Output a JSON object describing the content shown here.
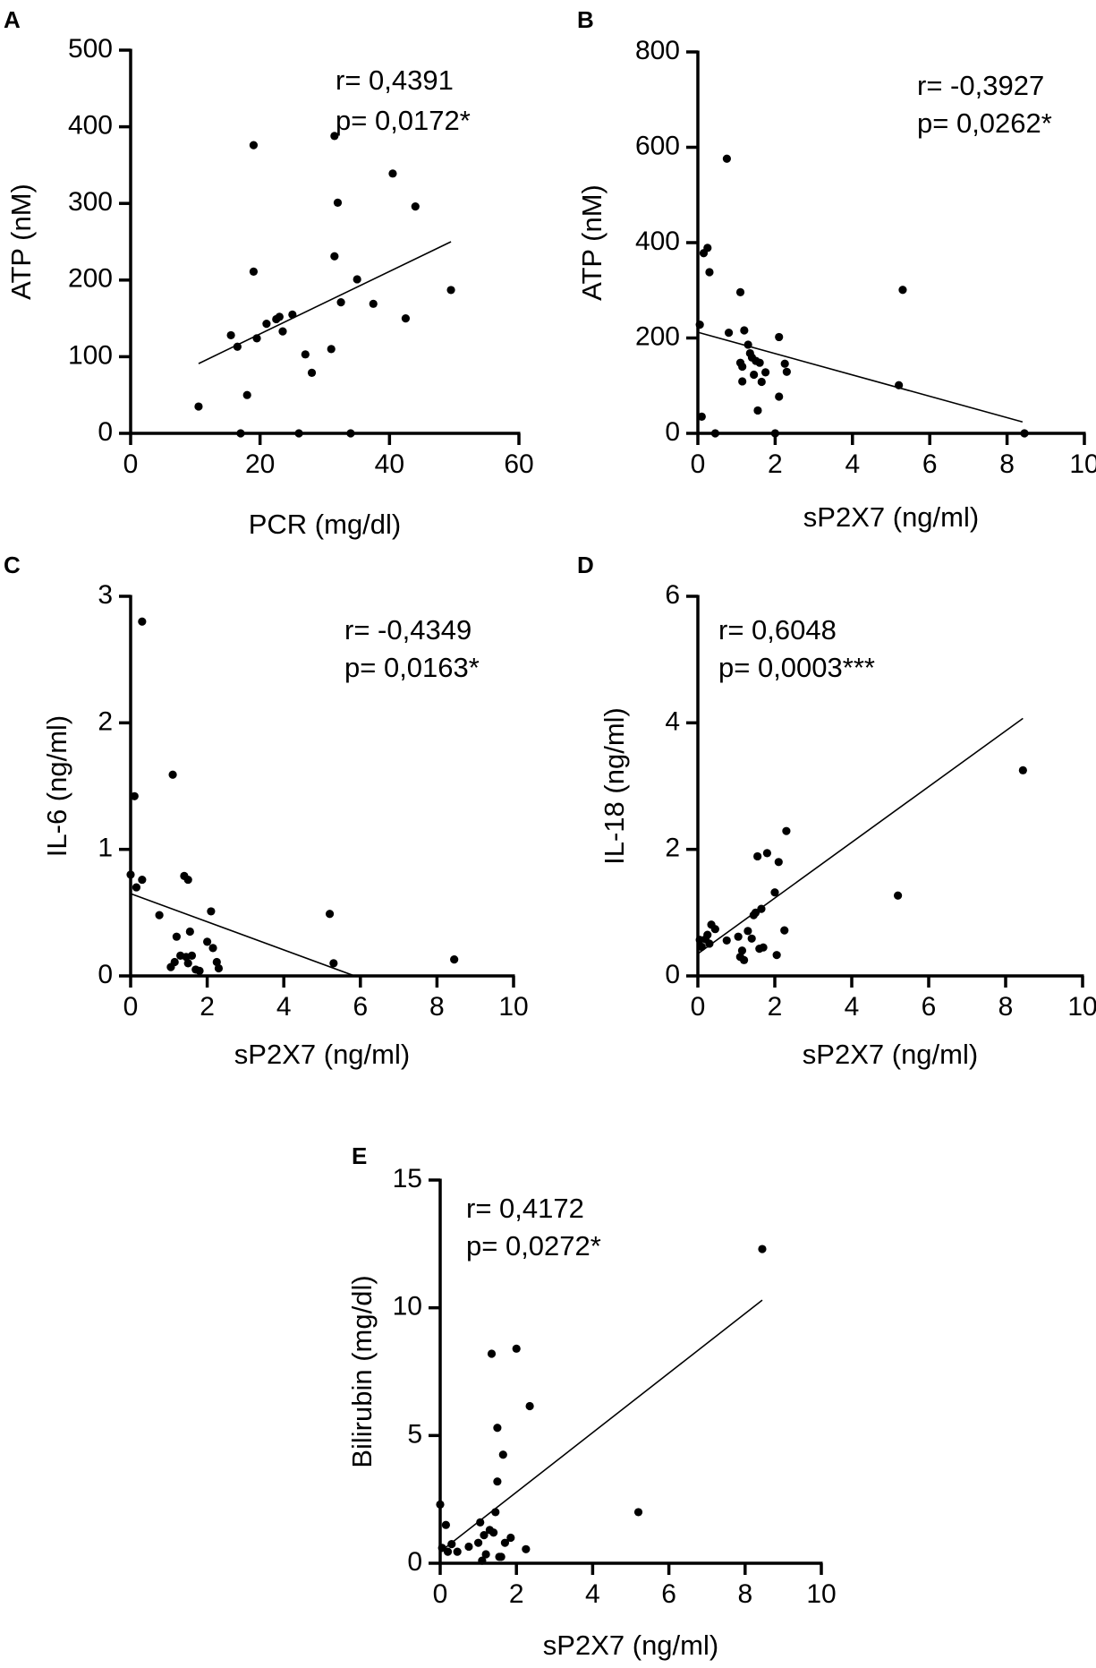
{
  "chart_data": [
    {
      "id": "A",
      "type": "scatter",
      "panel_label": "A",
      "xlabel": "PCR (mg/dl)",
      "ylabel": "ATP (nM)",
      "xlim": [
        0,
        60
      ],
      "ylim": [
        0,
        500
      ],
      "xticks": [
        0,
        20,
        40,
        60
      ],
      "yticks": [
        0,
        100,
        200,
        300,
        400,
        500
      ],
      "stats": {
        "r": "r= 0,4391",
        "p": "p= 0,0172*"
      },
      "fit_line": {
        "x1": 10.5,
        "y1": 91,
        "x2": 49.5,
        "y2": 250
      },
      "points": [
        {
          "x": 10.5,
          "y": 35
        },
        {
          "x": 15.5,
          "y": 128
        },
        {
          "x": 16.5,
          "y": 113
        },
        {
          "x": 17,
          "y": 0
        },
        {
          "x": 18,
          "y": 50
        },
        {
          "x": 19,
          "y": 376
        },
        {
          "x": 19,
          "y": 211
        },
        {
          "x": 19.5,
          "y": 124
        },
        {
          "x": 21,
          "y": 143
        },
        {
          "x": 22.5,
          "y": 149
        },
        {
          "x": 23,
          "y": 152
        },
        {
          "x": 23.5,
          "y": 133
        },
        {
          "x": 25,
          "y": 155
        },
        {
          "x": 26,
          "y": 0
        },
        {
          "x": 27,
          "y": 103
        },
        {
          "x": 28,
          "y": 79
        },
        {
          "x": 31,
          "y": 110
        },
        {
          "x": 31.5,
          "y": 231
        },
        {
          "x": 31.5,
          "y": 388
        },
        {
          "x": 32,
          "y": 301
        },
        {
          "x": 32.5,
          "y": 171
        },
        {
          "x": 34,
          "y": 0
        },
        {
          "x": 35,
          "y": 201
        },
        {
          "x": 37.5,
          "y": 169
        },
        {
          "x": 40.5,
          "y": 339
        },
        {
          "x": 42.5,
          "y": 150
        },
        {
          "x": 44,
          "y": 296
        },
        {
          "x": 49.5,
          "y": 187
        }
      ]
    },
    {
      "id": "B",
      "type": "scatter",
      "panel_label": "B",
      "xlabel": "sP2X7 (ng/ml)",
      "ylabel": "ATP (nM)",
      "xlim": [
        0,
        10
      ],
      "ylim": [
        0,
        800
      ],
      "xticks": [
        0,
        2,
        4,
        6,
        8,
        10
      ],
      "yticks": [
        0,
        200,
        400,
        600,
        800
      ],
      "stats": {
        "r": "r= -0,3927",
        "p": "p= 0,0262*"
      },
      "fit_line": {
        "x1": 0,
        "y1": 212,
        "x2": 8.4,
        "y2": 24
      },
      "points": [
        {
          "x": 0.05,
          "y": 228
        },
        {
          "x": 0.1,
          "y": 35
        },
        {
          "x": 0.15,
          "y": 378
        },
        {
          "x": 0.25,
          "y": 389
        },
        {
          "x": 0.3,
          "y": 338
        },
        {
          "x": 0.45,
          "y": 0
        },
        {
          "x": 0.75,
          "y": 576
        },
        {
          "x": 0.8,
          "y": 211
        },
        {
          "x": 1.1,
          "y": 296
        },
        {
          "x": 1.1,
          "y": 148
        },
        {
          "x": 1.15,
          "y": 140
        },
        {
          "x": 1.15,
          "y": 109
        },
        {
          "x": 1.2,
          "y": 216
        },
        {
          "x": 1.3,
          "y": 186
        },
        {
          "x": 1.35,
          "y": 168
        },
        {
          "x": 1.4,
          "y": 159
        },
        {
          "x": 1.45,
          "y": 123
        },
        {
          "x": 1.5,
          "y": 152
        },
        {
          "x": 1.55,
          "y": 48
        },
        {
          "x": 1.6,
          "y": 148
        },
        {
          "x": 1.65,
          "y": 108
        },
        {
          "x": 1.75,
          "y": 128
        },
        {
          "x": 2.0,
          "y": 0
        },
        {
          "x": 2.1,
          "y": 202
        },
        {
          "x": 2.1,
          "y": 77
        },
        {
          "x": 2.25,
          "y": 146
        },
        {
          "x": 2.3,
          "y": 129
        },
        {
          "x": 5.2,
          "y": 101
        },
        {
          "x": 5.3,
          "y": 301
        },
        {
          "x": 8.45,
          "y": 0
        }
      ]
    },
    {
      "id": "C",
      "type": "scatter",
      "panel_label": "C",
      "xlabel": "sP2X7 (ng/ml)",
      "ylabel": "IL-6 (ng/ml)",
      "xlim": [
        0,
        10
      ],
      "ylim": [
        0,
        3
      ],
      "xticks": [
        0,
        2,
        4,
        6,
        8,
        10
      ],
      "yticks": [
        0,
        1,
        2,
        3
      ],
      "stats": {
        "r": "r= -0,4349",
        "p": "p= 0,0163*"
      },
      "fit_line": {
        "x1": 0,
        "y1": 0.65,
        "x2": 5.85,
        "y2": 0
      },
      "points": [
        {
          "x": 0.0,
          "y": 0.8
        },
        {
          "x": 0.1,
          "y": 1.42
        },
        {
          "x": 0.15,
          "y": 0.7
        },
        {
          "x": 0.3,
          "y": 2.8
        },
        {
          "x": 0.3,
          "y": 0.76
        },
        {
          "x": 0.75,
          "y": 0.48
        },
        {
          "x": 1.05,
          "y": 0.07
        },
        {
          "x": 1.1,
          "y": 1.59
        },
        {
          "x": 1.15,
          "y": 0.11
        },
        {
          "x": 1.2,
          "y": 0.31
        },
        {
          "x": 1.3,
          "y": 0.16
        },
        {
          "x": 1.4,
          "y": 0.79
        },
        {
          "x": 1.45,
          "y": 0.15
        },
        {
          "x": 1.5,
          "y": 0.76
        },
        {
          "x": 1.5,
          "y": 0.1
        },
        {
          "x": 1.55,
          "y": 0.35
        },
        {
          "x": 1.6,
          "y": 0.16
        },
        {
          "x": 1.7,
          "y": 0.05
        },
        {
          "x": 1.8,
          "y": 0.04
        },
        {
          "x": 2.0,
          "y": 0.27
        },
        {
          "x": 2.1,
          "y": 0.51
        },
        {
          "x": 2.15,
          "y": 0.22
        },
        {
          "x": 2.25,
          "y": 0.11
        },
        {
          "x": 2.3,
          "y": 0.06
        },
        {
          "x": 5.2,
          "y": 0.49
        },
        {
          "x": 5.3,
          "y": 0.1
        },
        {
          "x": 8.45,
          "y": 0.13
        }
      ]
    },
    {
      "id": "D",
      "type": "scatter",
      "panel_label": "D",
      "xlabel": "sP2X7 (ng/ml)",
      "ylabel": "IL-18 (ng/ml)",
      "xlim": [
        0,
        10
      ],
      "ylim": [
        0,
        6
      ],
      "xticks": [
        0,
        2,
        4,
        6,
        8,
        10
      ],
      "yticks": [
        0,
        2,
        4,
        6
      ],
      "stats": {
        "r": "r= 0,6048",
        "p": "p= 0,0003***"
      },
      "fit_line": {
        "x1": 0,
        "y1": 0.35,
        "x2": 8.45,
        "y2": 4.07
      },
      "points": [
        {
          "x": 0.05,
          "y": 0.57
        },
        {
          "x": 0.1,
          "y": 0.46
        },
        {
          "x": 0.2,
          "y": 0.58
        },
        {
          "x": 0.25,
          "y": 0.65
        },
        {
          "x": 0.3,
          "y": 0.51
        },
        {
          "x": 0.35,
          "y": 0.81
        },
        {
          "x": 0.45,
          "y": 0.74
        },
        {
          "x": 0.75,
          "y": 0.56
        },
        {
          "x": 1.05,
          "y": 0.62
        },
        {
          "x": 1.1,
          "y": 0.3
        },
        {
          "x": 1.15,
          "y": 0.4
        },
        {
          "x": 1.2,
          "y": 0.25
        },
        {
          "x": 1.3,
          "y": 0.71
        },
        {
          "x": 1.4,
          "y": 0.59
        },
        {
          "x": 1.45,
          "y": 0.96
        },
        {
          "x": 1.5,
          "y": 1.0
        },
        {
          "x": 1.55,
          "y": 1.89
        },
        {
          "x": 1.6,
          "y": 0.43
        },
        {
          "x": 1.65,
          "y": 1.06
        },
        {
          "x": 1.7,
          "y": 0.45
        },
        {
          "x": 1.8,
          "y": 1.94
        },
        {
          "x": 2.0,
          "y": 1.32
        },
        {
          "x": 2.05,
          "y": 0.33
        },
        {
          "x": 2.1,
          "y": 1.8
        },
        {
          "x": 2.25,
          "y": 0.72
        },
        {
          "x": 2.3,
          "y": 2.29
        },
        {
          "x": 5.2,
          "y": 1.27
        },
        {
          "x": 8.45,
          "y": 3.25
        }
      ]
    },
    {
      "id": "E",
      "type": "scatter",
      "panel_label": "E",
      "xlabel": "sP2X7 (ng/ml)",
      "ylabel": "Bilirubin (mg/dl)",
      "xlim": [
        0,
        10
      ],
      "ylim": [
        0,
        15
      ],
      "xticks": [
        0,
        2,
        4,
        6,
        8,
        10
      ],
      "yticks": [
        0,
        5,
        10,
        15
      ],
      "stats": {
        "r": "r= 0,4172",
        "p": "p= 0,0272*"
      },
      "fit_line": {
        "x1": 0,
        "y1": 0.45,
        "x2": 8.45,
        "y2": 10.3
      },
      "points": [
        {
          "x": 0.0,
          "y": 2.3
        },
        {
          "x": 0.05,
          "y": 0.6
        },
        {
          "x": 0.15,
          "y": 1.5
        },
        {
          "x": 0.2,
          "y": 0.45
        },
        {
          "x": 0.3,
          "y": 0.75
        },
        {
          "x": 0.45,
          "y": 0.45
        },
        {
          "x": 0.75,
          "y": 0.65
        },
        {
          "x": 1.0,
          "y": 0.8
        },
        {
          "x": 1.05,
          "y": 1.6
        },
        {
          "x": 1.1,
          "y": 0.1
        },
        {
          "x": 1.15,
          "y": 1.1
        },
        {
          "x": 1.2,
          "y": 0.35
        },
        {
          "x": 1.3,
          "y": 1.3
        },
        {
          "x": 1.35,
          "y": 8.2
        },
        {
          "x": 1.4,
          "y": 1.2
        },
        {
          "x": 1.45,
          "y": 2.0
        },
        {
          "x": 1.5,
          "y": 5.3
        },
        {
          "x": 1.5,
          "y": 3.2
        },
        {
          "x": 1.55,
          "y": 0.25
        },
        {
          "x": 1.6,
          "y": 0.25
        },
        {
          "x": 1.65,
          "y": 4.25
        },
        {
          "x": 1.7,
          "y": 0.8
        },
        {
          "x": 1.85,
          "y": 1.0
        },
        {
          "x": 2.0,
          "y": 8.4
        },
        {
          "x": 2.25,
          "y": 0.55
        },
        {
          "x": 2.35,
          "y": 6.15
        },
        {
          "x": 5.2,
          "y": 2.0
        },
        {
          "x": 8.45,
          "y": 12.3
        }
      ]
    }
  ]
}
